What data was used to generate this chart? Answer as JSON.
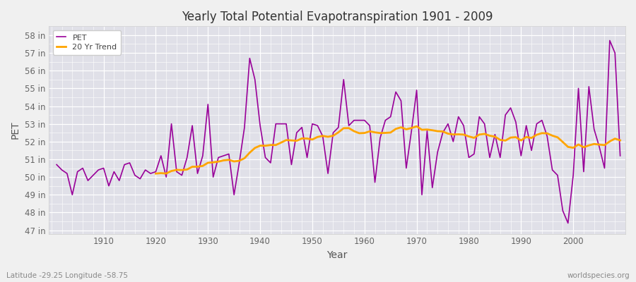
{
  "title": "Yearly Total Potential Evapotranspiration 1901 - 2009",
  "xlabel": "Year",
  "ylabel": "PET",
  "subtitle": "Latitude -29.25 Longitude -58.75",
  "watermark": "worldspecies.org",
  "pet_color": "#990099",
  "trend_color": "#FFA500",
  "bg_color": "#f0f0f0",
  "plot_bg_color": "#e0e0e8",
  "years": [
    1901,
    1902,
    1903,
    1904,
    1905,
    1906,
    1907,
    1908,
    1909,
    1910,
    1911,
    1912,
    1913,
    1914,
    1915,
    1916,
    1917,
    1918,
    1919,
    1920,
    1921,
    1922,
    1923,
    1924,
    1925,
    1926,
    1927,
    1928,
    1929,
    1930,
    1931,
    1932,
    1933,
    1934,
    1935,
    1936,
    1937,
    1938,
    1939,
    1940,
    1941,
    1942,
    1943,
    1944,
    1945,
    1946,
    1947,
    1948,
    1949,
    1950,
    1951,
    1952,
    1953,
    1954,
    1955,
    1956,
    1957,
    1958,
    1959,
    1960,
    1961,
    1962,
    1963,
    1964,
    1965,
    1966,
    1967,
    1968,
    1969,
    1970,
    1971,
    1972,
    1973,
    1974,
    1975,
    1976,
    1977,
    1978,
    1979,
    1980,
    1981,
    1982,
    1983,
    1984,
    1985,
    1986,
    1987,
    1988,
    1989,
    1990,
    1991,
    1992,
    1993,
    1994,
    1995,
    1996,
    1997,
    1998,
    1999,
    2000,
    2001,
    2002,
    2003,
    2004,
    2005,
    2006,
    2007,
    2008,
    2009
  ],
  "pet_values": [
    50.7,
    50.4,
    50.2,
    49.0,
    50.3,
    50.5,
    49.8,
    50.1,
    50.4,
    50.5,
    49.5,
    50.3,
    49.8,
    50.7,
    50.8,
    50.1,
    49.9,
    50.4,
    50.2,
    50.3,
    51.2,
    50.0,
    53.0,
    50.3,
    50.1,
    51.1,
    52.9,
    50.2,
    51.2,
    54.1,
    50.0,
    51.1,
    51.2,
    51.3,
    49.0,
    50.8,
    52.8,
    56.7,
    55.5,
    52.9,
    51.1,
    50.8,
    53.0,
    53.0,
    53.0,
    50.7,
    52.5,
    52.8,
    51.1,
    53.0,
    52.9,
    52.3,
    50.2,
    52.5,
    52.8,
    55.5,
    52.9,
    53.2,
    53.2,
    53.2,
    52.9,
    49.7,
    52.2,
    53.2,
    53.4,
    54.8,
    54.3,
    50.5,
    52.6,
    54.9,
    49.0,
    52.6,
    49.4,
    51.4,
    52.5,
    53.0,
    52.0,
    53.4,
    52.9,
    51.1,
    51.3,
    53.4,
    53.0,
    51.1,
    52.4,
    51.1,
    53.5,
    53.9,
    53.1,
    51.2,
    52.9,
    51.5,
    53.0,
    53.2,
    52.3,
    50.4,
    50.1,
    48.1,
    47.4,
    50.1,
    55.0,
    50.3,
    55.1,
    52.7,
    51.7,
    50.5,
    57.7,
    57.0,
    51.2
  ],
  "ylim": [
    46.8,
    58.5
  ],
  "yticks": [
    47,
    48,
    49,
    50,
    51,
    52,
    53,
    54,
    55,
    56,
    57,
    58
  ],
  "ytick_labels": [
    "47 in",
    "48 in",
    "49 in",
    "50 in",
    "51 in",
    "52 in",
    "53 in",
    "54 in",
    "55 in",
    "56 in",
    "57 in",
    "58 in"
  ],
  "xlim": [
    1899.5,
    2010
  ],
  "xticks": [
    1910,
    1920,
    1930,
    1940,
    1950,
    1960,
    1970,
    1980,
    1990,
    2000
  ],
  "trend_window": 20,
  "figsize": [
    9.0,
    4.0
  ],
  "dpi": 100
}
